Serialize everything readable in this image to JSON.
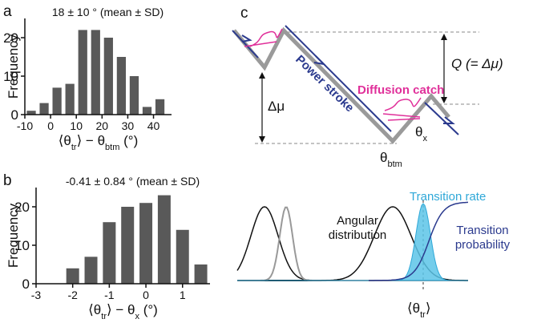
{
  "chart_data": [
    {
      "type": "histogram",
      "panel": "a",
      "title": "18 ± 10 ° (mean ± SD)",
      "ylabel": "Frequency",
      "xlabel": [
        "⟨θ",
        "tr",
        "⟩ − θ",
        "btm",
        "  (°)"
      ],
      "bins": [
        -10,
        -5,
        0,
        5,
        10,
        15,
        20,
        25,
        30,
        35,
        40,
        45
      ],
      "counts": [
        1,
        3,
        7,
        8,
        22,
        22,
        20,
        15,
        10,
        2,
        4
      ],
      "color": "#595959",
      "xlim": [
        -10,
        47
      ],
      "xticks": [
        -10,
        0,
        10,
        20,
        30,
        40
      ],
      "ylim": [
        0,
        25
      ],
      "yticks": [
        0,
        10,
        20
      ]
    },
    {
      "type": "histogram",
      "panel": "b",
      "title": "-0.41 ± 0.84 ° (mean ± SD)",
      "ylabel": "Frequency",
      "xlabel": [
        "⟨θ",
        "tr",
        "⟩ − θ",
        "x",
        "  (°)"
      ],
      "bins": [
        -2.25,
        -1.75,
        -1.25,
        -0.75,
        -0.25,
        0.25,
        0.75,
        1.25,
        1.75
      ],
      "counts": [
        4,
        7,
        16,
        20,
        21,
        23,
        14,
        5
      ],
      "color": "#595959",
      "xlim": [
        -3,
        1.75
      ],
      "xticks": [
        -3,
        -2,
        -1,
        0,
        1
      ],
      "ylim": [
        0,
        25
      ],
      "yticks": [
        0,
        10,
        20
      ]
    }
  ],
  "diagram": {
    "panel": "c",
    "power_stroke": "Power stroke",
    "diffusion_catch": "Diffusion catch",
    "q_label": "Q (= Δμ)",
    "delta_mu": "Δμ",
    "theta_x": [
      "θ",
      "x"
    ],
    "theta_btm": [
      "θ",
      "btm"
    ],
    "transition_rate": "Transition rate",
    "angular_distribution": [
      "Angular",
      "distribution"
    ],
    "transition_probability": [
      "Transition",
      "probability"
    ],
    "theta_tr": [
      "⟨θ",
      "tr",
      "⟩"
    ]
  }
}
